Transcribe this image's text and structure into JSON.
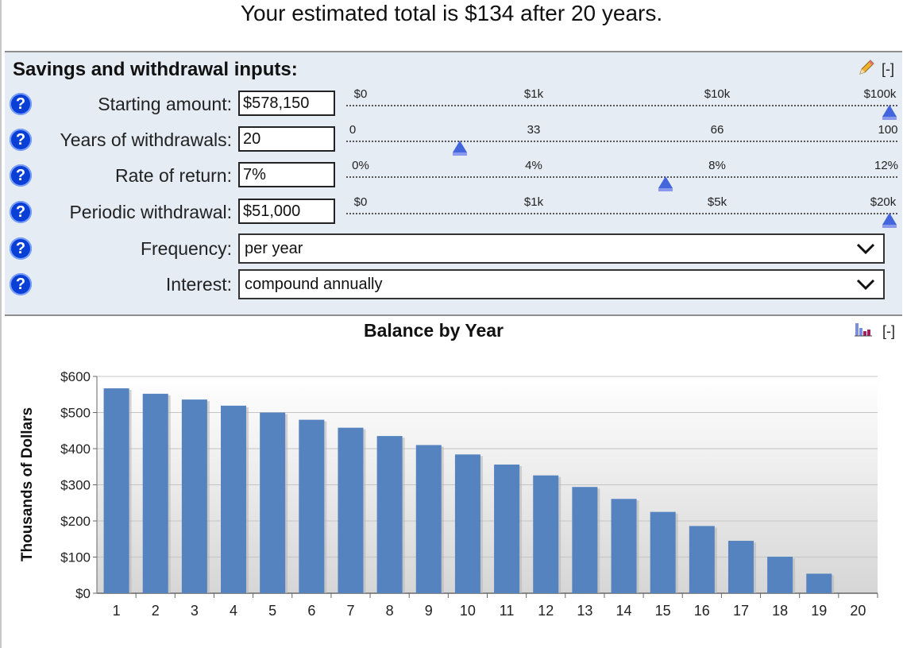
{
  "headline": "Your estimated total is $134 after 20 years.",
  "inputs": {
    "title": "Savings and withdrawal inputs:",
    "collapse": "[-]",
    "help_glyph": "?",
    "starting_amount": {
      "label": "Starting amount:",
      "value": "$578,150",
      "ticks": [
        "$0",
        "$1k",
        "$10k",
        "$100k"
      ],
      "position": 1.0
    },
    "years": {
      "label": "Years of withdrawals:",
      "value": "20",
      "ticks": [
        "0",
        "33",
        "66",
        "100"
      ],
      "position": 0.2
    },
    "rate": {
      "label": "Rate of return:",
      "value": "7%",
      "ticks": [
        "0%",
        "4%",
        "8%",
        "12%"
      ],
      "position": 0.583
    },
    "withdrawal": {
      "label": "Periodic withdrawal:",
      "value": "$51,000",
      "ticks": [
        "$0",
        "$1k",
        "$5k",
        "$20k"
      ],
      "position": 1.0
    },
    "frequency": {
      "label": "Frequency:",
      "value": "per year"
    },
    "interest": {
      "label": "Interest:",
      "value": "compound annually"
    }
  },
  "chart_tools": {
    "collapse": "[-]"
  },
  "icons": {
    "edit": "pencil-icon",
    "chart_toggle": "bar-chart-icon",
    "help": "question-circle-icon",
    "select": "chevron-down-icon"
  },
  "colors": {
    "panel_bg": "#e5ecf4",
    "help_blue": "#0a3fd6",
    "bar": "#5583c0",
    "thumb": "#4466dd"
  },
  "chart_data": {
    "type": "bar",
    "title": "Balance by Year",
    "xlabel": "",
    "ylabel": "Thousands of Dollars",
    "categories": [
      "1",
      "2",
      "3",
      "4",
      "5",
      "6",
      "7",
      "8",
      "9",
      "10",
      "11",
      "12",
      "13",
      "14",
      "15",
      "16",
      "17",
      "18",
      "19",
      "20"
    ],
    "values": [
      567,
      552,
      536,
      519,
      500,
      480,
      458,
      435,
      410,
      384,
      356,
      326,
      294,
      261,
      225,
      186,
      145,
      101,
      54,
      0.134
    ],
    "ylim": [
      0,
      600
    ],
    "yticks": [
      "$0",
      "$100",
      "$200",
      "$300",
      "$400",
      "$500",
      "$600"
    ],
    "grid": true,
    "legend": "none"
  }
}
